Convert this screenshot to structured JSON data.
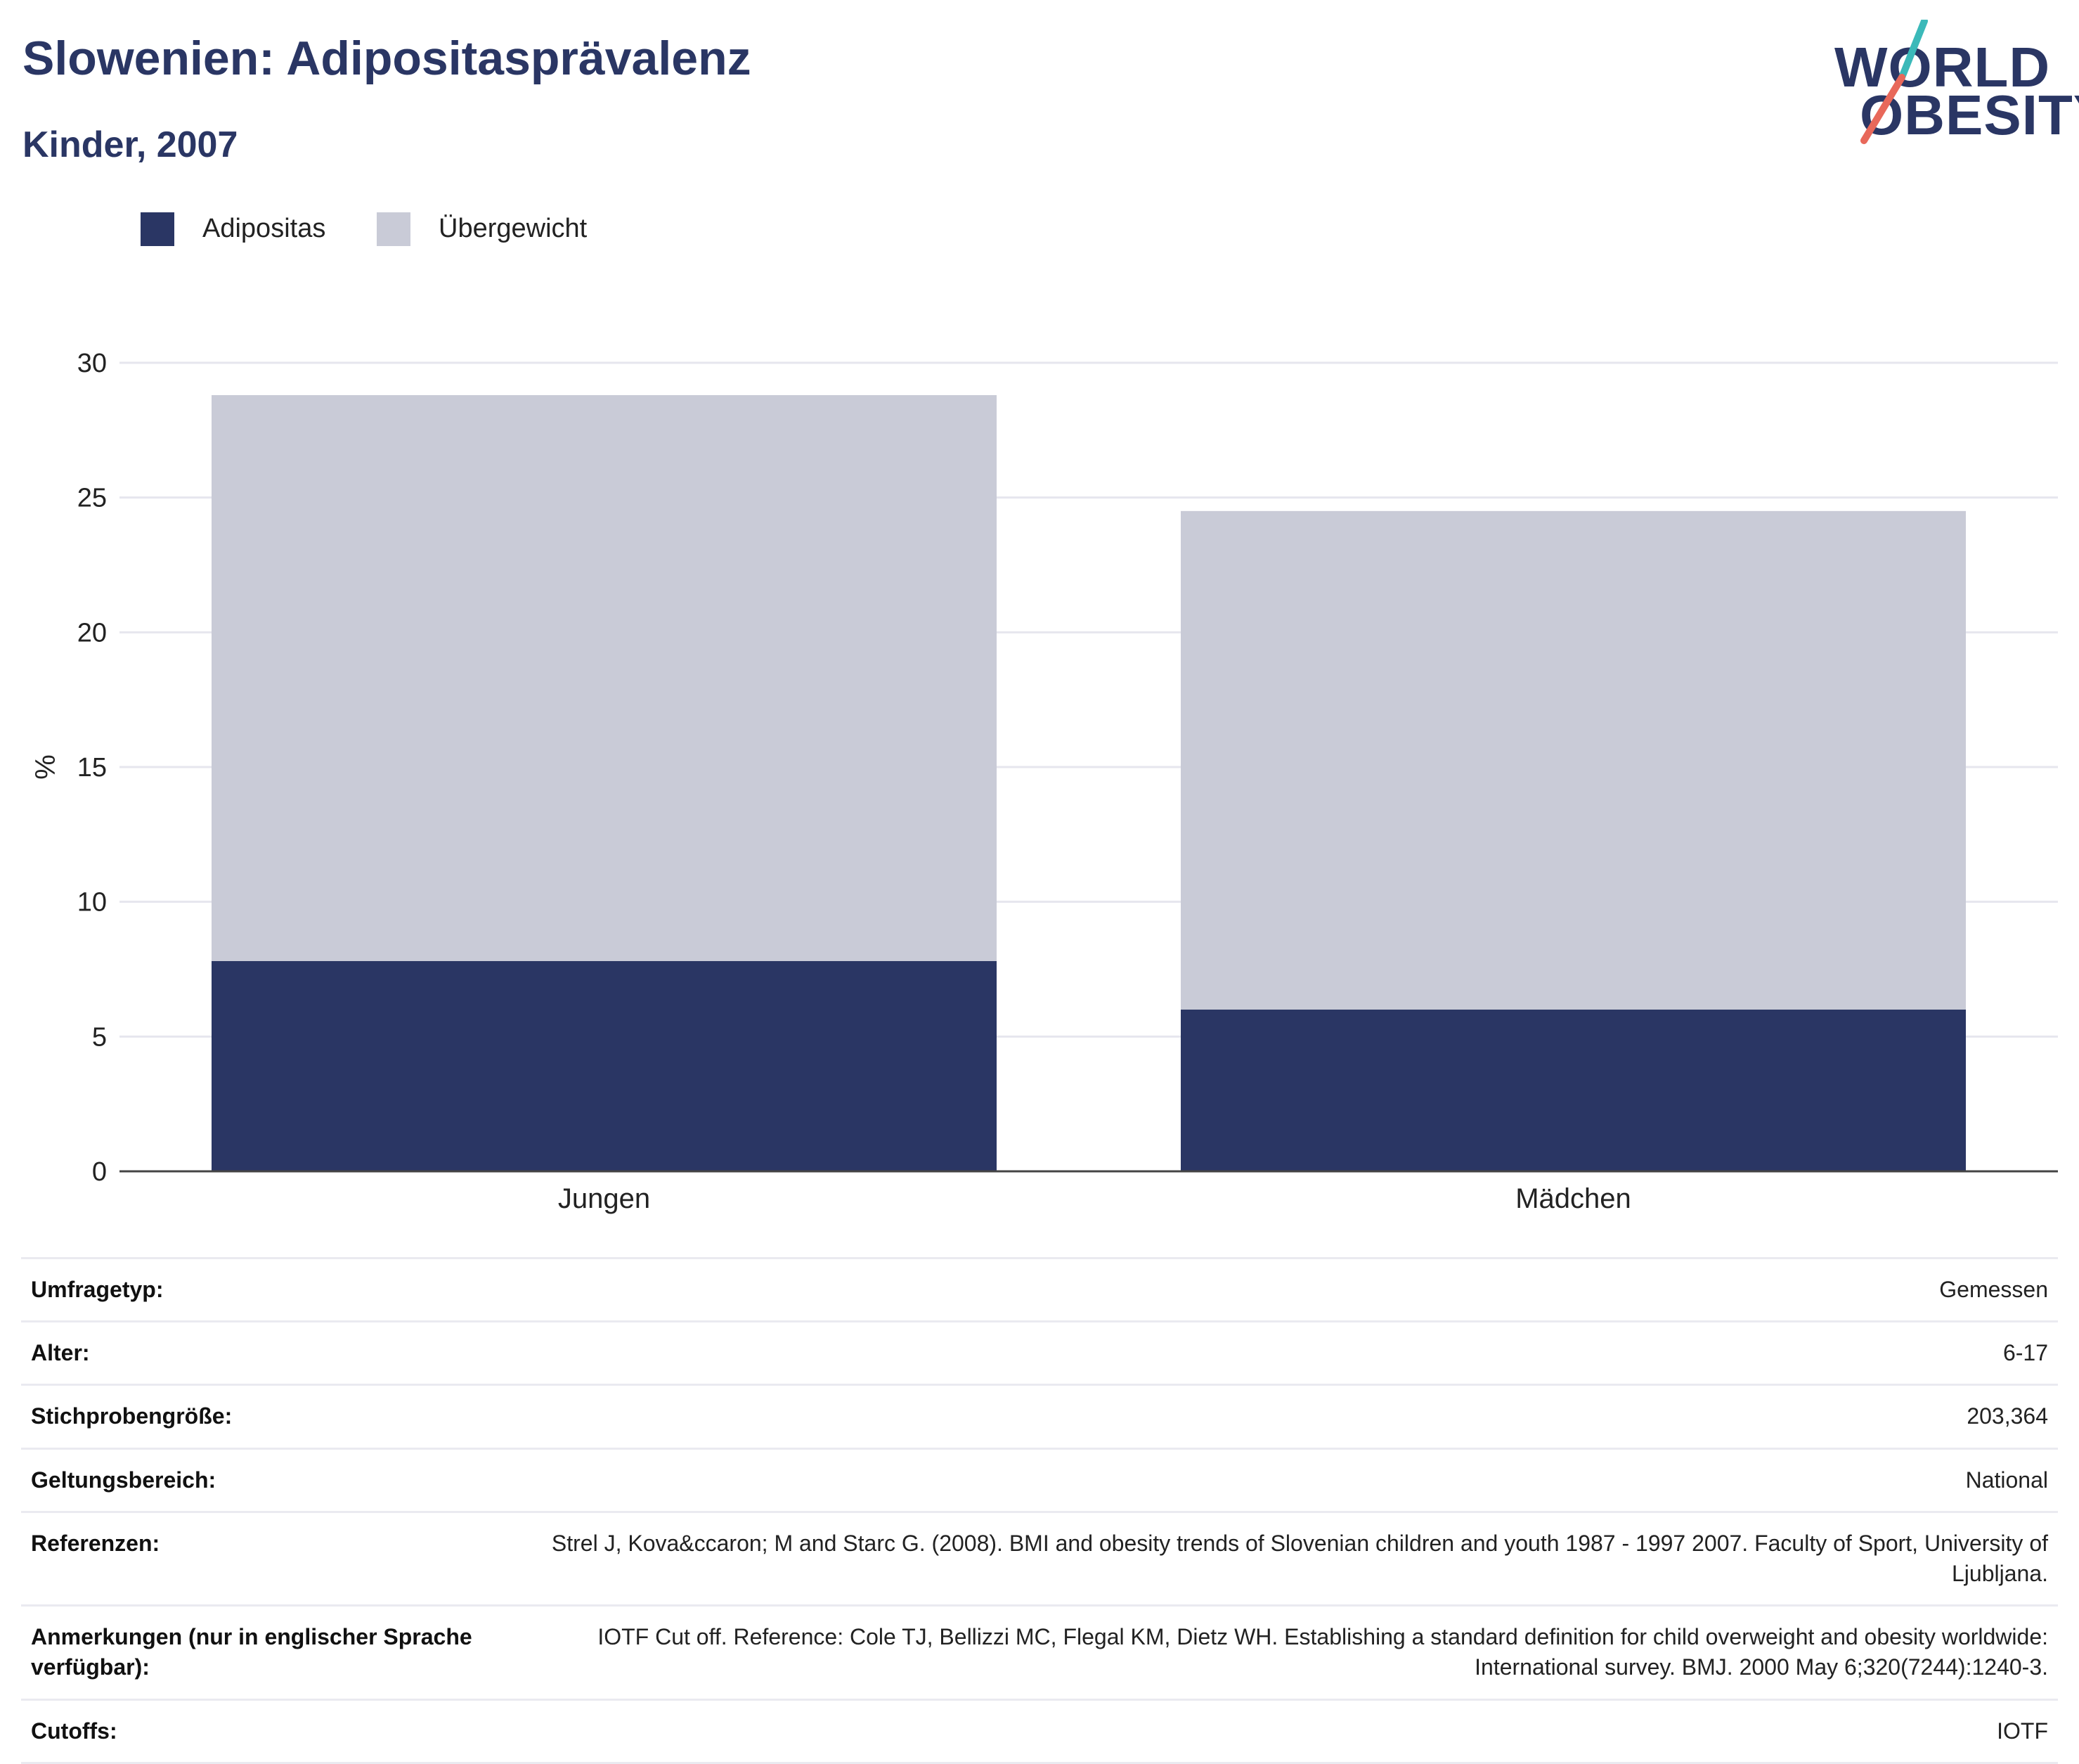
{
  "header": {
    "title": "Slowenien: Adipositasprävalenz",
    "subtitle": "Kinder, 2007"
  },
  "logo": {
    "line1": "WORLD",
    "line2": "OBESITY",
    "colors": {
      "text": "#2a3664",
      "slash_top": "#3bb9b9",
      "slash_bottom": "#e8685a"
    }
  },
  "legend": [
    {
      "label": "Adipositas",
      "color": "#2a3664"
    },
    {
      "label": "Übergewicht",
      "color": "#c9cbd7"
    }
  ],
  "chart_data": {
    "type": "bar",
    "stacked": true,
    "categories": [
      "Jungen",
      "Mädchen"
    ],
    "series": [
      {
        "name": "Adipositas",
        "values": [
          7.8,
          6.0
        ],
        "color": "#2a3664"
      },
      {
        "name": "Übergewicht",
        "values": [
          21.0,
          18.5
        ],
        "color": "#c9cbd7"
      }
    ],
    "ylabel": "%",
    "ylim": [
      0,
      30
    ],
    "yticks": [
      0,
      5,
      10,
      15,
      20,
      25,
      30
    ],
    "grid": true,
    "legend_position": "top-left"
  },
  "info": [
    {
      "key": "Umfragetyp:",
      "value": "Gemessen"
    },
    {
      "key": "Alter:",
      "value": "6-17"
    },
    {
      "key": "Stichprobengröße:",
      "value": "203,364"
    },
    {
      "key": "Geltungsbereich:",
      "value": "National"
    },
    {
      "key": "Referenzen:",
      "value": "Strel J, Kova&ccaron; M and Starc G. (2008). BMI and obesity trends of Slovenian children and youth 1987 - 1997 2007. Faculty of Sport, University of Ljubljana."
    },
    {
      "key": "Anmerkungen (nur in englischer Sprache verfügbar):",
      "value": "IOTF Cut off. Reference: Cole TJ, Bellizzi MC, Flegal KM, Dietz WH. Establishing a standard definition for child overweight and obesity worldwide: International survey. BMJ. 2000 May 6;320(7244):1240-3."
    },
    {
      "key": "Cutoffs:",
      "value": "IOTF"
    }
  ]
}
